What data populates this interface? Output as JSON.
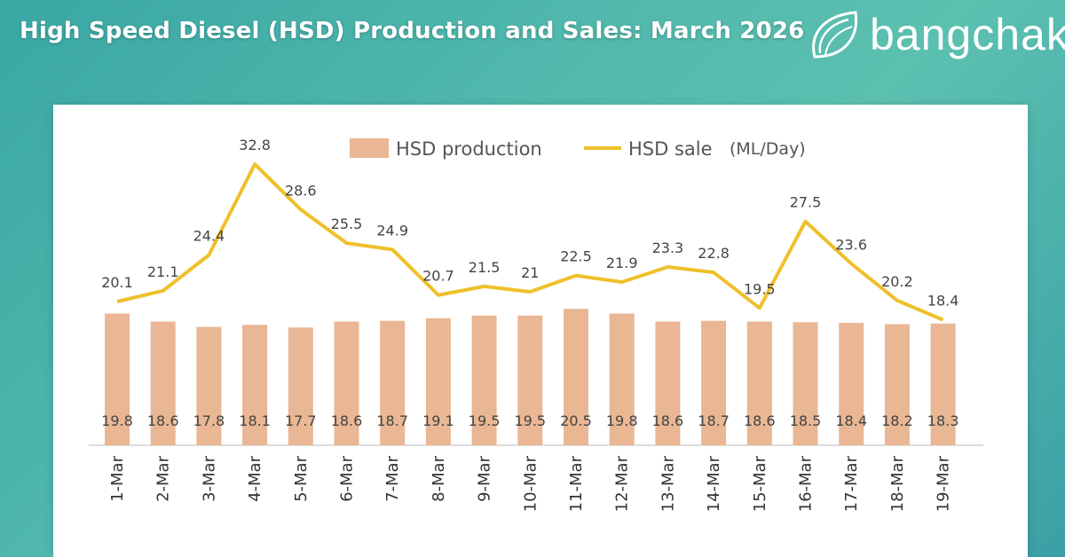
{
  "header": {
    "title": "High Speed Diesel (HSD) Production and Sales: March 2026",
    "brand": "bangchak"
  },
  "colors": {
    "bar": "#e9b793",
    "line": "#efc02a"
  },
  "chart_data": {
    "type": "bar",
    "categories": [
      "1-Mar",
      "2-Mar",
      "3-Mar",
      "4-Mar",
      "5-Mar",
      "6-Mar",
      "7-Mar",
      "8-Mar",
      "9-Mar",
      "10-Mar",
      "11-Mar",
      "12-Mar",
      "13-Mar",
      "14-Mar",
      "15-Mar",
      "16-Mar",
      "17-Mar",
      "18-Mar",
      "19-Mar"
    ],
    "series": [
      {
        "name": "HSD production",
        "type": "bar",
        "values": [
          19.8,
          18.6,
          17.8,
          18.1,
          17.7,
          18.6,
          18.7,
          19.1,
          19.5,
          19.5,
          20.5,
          19.8,
          18.6,
          18.7,
          18.6,
          18.5,
          18.4,
          18.2,
          18.3
        ],
        "labels": [
          "19.8",
          "18.6",
          "17.8",
          "18.1",
          "17.7",
          "18.6",
          "18.7",
          "19.1",
          "19.5",
          "19.5",
          "20.5",
          "19.8",
          "18.6",
          "18.7",
          "18.6",
          "18.5",
          "18.4",
          "18.2",
          "18.3"
        ]
      },
      {
        "name": "HSD sale",
        "type": "line",
        "values": [
          20.1,
          21.1,
          24.4,
          32.8,
          28.6,
          25.5,
          24.9,
          20.7,
          21.5,
          21,
          22.5,
          21.9,
          23.3,
          22.8,
          19.5,
          27.5,
          23.6,
          20.2,
          18.4
        ],
        "labels": [
          "20.1",
          "21.1",
          "24.4",
          "32.8",
          "28.6",
          "25.5",
          "24.9",
          "20.7",
          "21.5",
          "21",
          "22.5",
          "21.9",
          "23.3",
          "22.8",
          "19.5",
          "27.5",
          "23.6",
          "20.2",
          "18.4"
        ]
      }
    ],
    "unit": "(ML/Day)",
    "legend_position": "top-center"
  }
}
